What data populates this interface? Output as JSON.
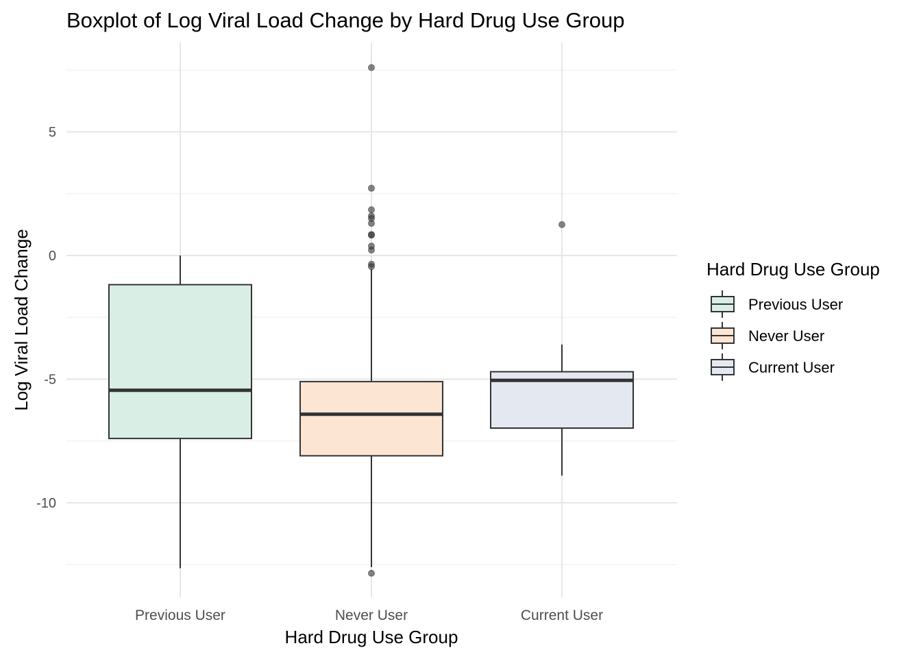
{
  "chart_data": {
    "type": "boxplot",
    "title": "Boxplot of Log Viral Load Change by Hard Drug Use Group",
    "xlabel": "Hard Drug Use Group",
    "ylabel": "Log Viral Load Change",
    "ylim": [
      -13.4,
      8.6
    ],
    "yticks": [
      -10,
      -5,
      0,
      5
    ],
    "ytick_labels": [
      "-10",
      "-5",
      "0",
      "5"
    ],
    "minor_yticks": [
      -12.5,
      -7.5,
      -2.5,
      2.5,
      7.5
    ],
    "grid": true,
    "legend": {
      "title": "Hard Drug Use Group",
      "position": "right",
      "entries": [
        "Previous User",
        "Never User",
        "Current User"
      ]
    },
    "categories": [
      "Previous User",
      "Never User",
      "Current User"
    ],
    "groups": [
      {
        "name": "Previous User",
        "color": "#d9efe5",
        "whisker_low": -12.65,
        "q1": -7.4,
        "median": -5.45,
        "q3": -1.18,
        "whisker_high": 0.0,
        "outliers": []
      },
      {
        "name": "Never User",
        "color": "#fde5d4",
        "whisker_low": -12.6,
        "q1": -8.1,
        "median": -6.42,
        "q3": -5.1,
        "whisker_high": -0.55,
        "outliers": [
          7.6,
          2.72,
          1.85,
          1.6,
          1.5,
          1.3,
          0.85,
          0.82,
          0.38,
          0.22,
          -0.35,
          -0.45,
          -12.85
        ]
      },
      {
        "name": "Current User",
        "color": "#e4e8f1",
        "whisker_low": -8.9,
        "q1": -6.98,
        "median": -5.05,
        "q3": -4.7,
        "whisker_high": -3.6,
        "outliers": [
          1.25
        ]
      }
    ]
  }
}
